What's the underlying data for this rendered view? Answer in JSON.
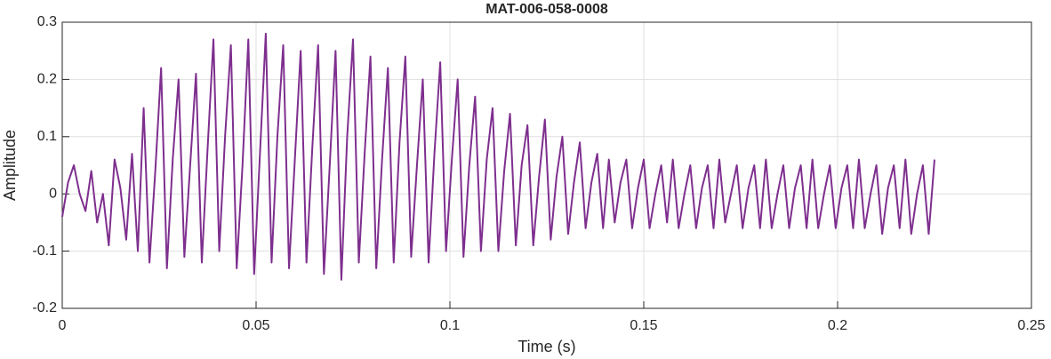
{
  "chart_data": {
    "type": "line",
    "title": "MAT-006-058-0008",
    "x_label": "Time (s)",
    "y_label": "Amplitude",
    "x": [
      0,
      0.0015,
      0.003,
      0.0045,
      0.006,
      0.0075,
      0.009,
      0.0105,
      0.012,
      0.0135,
      0.015,
      0.0165,
      0.018,
      0.0195,
      0.021,
      0.0225,
      0.024,
      0.0255,
      0.027,
      0.0285,
      0.03,
      0.0315,
      0.033,
      0.0345,
      0.036,
      0.0375,
      0.039,
      0.0405,
      0.042,
      0.0435,
      0.045,
      0.0465,
      0.048,
      0.0495,
      0.051,
      0.0525,
      0.054,
      0.0555,
      0.057,
      0.0585,
      0.06,
      0.0615,
      0.063,
      0.0645,
      0.066,
      0.0675,
      0.069,
      0.0705,
      0.072,
      0.0735,
      0.075,
      0.0765,
      0.078,
      0.0795,
      0.081,
      0.0825,
      0.084,
      0.0855,
      0.087,
      0.0885,
      0.09,
      0.0915,
      0.093,
      0.0945,
      0.096,
      0.0975,
      0.099,
      0.1005,
      0.102,
      0.1035,
      0.105,
      0.1065,
      0.108,
      0.1095,
      0.111,
      0.1125,
      0.114,
      0.1155,
      0.117,
      0.1185,
      0.12,
      0.1215,
      0.123,
      0.1245,
      0.126,
      0.1275,
      0.129,
      0.1305,
      0.132,
      0.1335,
      0.135,
      0.1365,
      0.138,
      0.1395,
      0.141,
      0.1425,
      0.144,
      0.1455,
      0.147,
      0.1485,
      0.15,
      0.1515,
      0.153,
      0.1545,
      0.156,
      0.1575,
      0.159,
      0.1605,
      0.162,
      0.1635,
      0.165,
      0.1665,
      0.168,
      0.1695,
      0.171,
      0.1725,
      0.174,
      0.1755,
      0.177,
      0.1785,
      0.18,
      0.1815,
      0.183,
      0.1845,
      0.186,
      0.1875,
      0.189,
      0.1905,
      0.192,
      0.1935,
      0.195,
      0.1965,
      0.198,
      0.1995,
      0.201,
      0.2025,
      0.204,
      0.2055,
      0.207,
      0.2085,
      0.21,
      0.2115,
      0.213,
      0.2145,
      0.216,
      0.2175,
      0.219,
      0.2205,
      0.222,
      0.2235,
      0.225
    ],
    "series": [
      {
        "color": "#7e2f8e",
        "values": [
          -0.04,
          0.02,
          0.05,
          0.0,
          -0.03,
          0.04,
          -0.05,
          0.0,
          -0.09,
          0.06,
          0.01,
          -0.08,
          0.07,
          -0.1,
          0.15,
          -0.12,
          0.04,
          0.22,
          -0.13,
          0.06,
          0.2,
          -0.11,
          0.05,
          0.21,
          -0.12,
          0.08,
          0.27,
          -0.1,
          0.1,
          0.26,
          -0.13,
          0.05,
          0.27,
          -0.14,
          0.07,
          0.28,
          -0.12,
          0.1,
          0.26,
          -0.13,
          0.06,
          0.25,
          -0.12,
          0.08,
          0.26,
          -0.14,
          0.05,
          0.25,
          -0.15,
          0.1,
          0.27,
          -0.12,
          0.07,
          0.24,
          -0.13,
          0.06,
          0.22,
          -0.12,
          0.09,
          0.24,
          -0.11,
          0.05,
          0.2,
          -0.12,
          0.07,
          0.23,
          -0.1,
          0.06,
          0.2,
          -0.11,
          0.05,
          0.17,
          -0.1,
          0.06,
          0.15,
          -0.1,
          0.04,
          0.14,
          -0.09,
          0.05,
          0.12,
          -0.09,
          0.03,
          0.13,
          -0.08,
          0.03,
          0.1,
          -0.07,
          0.02,
          0.09,
          -0.06,
          0.02,
          0.07,
          -0.06,
          0.06,
          -0.05,
          0.02,
          0.06,
          -0.06,
          0.01,
          0.06,
          -0.06,
          0.0,
          0.05,
          -0.05,
          0.06,
          -0.06,
          0.0,
          0.05,
          -0.06,
          0.01,
          0.05,
          -0.06,
          0.06,
          -0.05,
          0.0,
          0.05,
          -0.06,
          0.01,
          0.05,
          -0.06,
          0.06,
          -0.06,
          0.0,
          0.05,
          -0.06,
          0.01,
          0.05,
          -0.06,
          0.06,
          -0.06,
          0.0,
          0.05,
          -0.06,
          0.01,
          0.05,
          -0.06,
          0.06,
          -0.06,
          0.0,
          0.05,
          -0.07,
          0.01,
          0.05,
          -0.06,
          0.06,
          -0.07,
          0.0,
          0.05,
          -0.07,
          0.06
        ]
      }
    ],
    "xlim": [
      0,
      0.25
    ],
    "xticks": [
      0,
      0.05,
      0.1,
      0.15,
      0.2,
      0.25
    ],
    "ylim": [
      -0.2,
      0.3
    ],
    "yticks": [
      -0.2,
      -0.1,
      0,
      0.1,
      0.2,
      0.3
    ],
    "grid": true
  }
}
